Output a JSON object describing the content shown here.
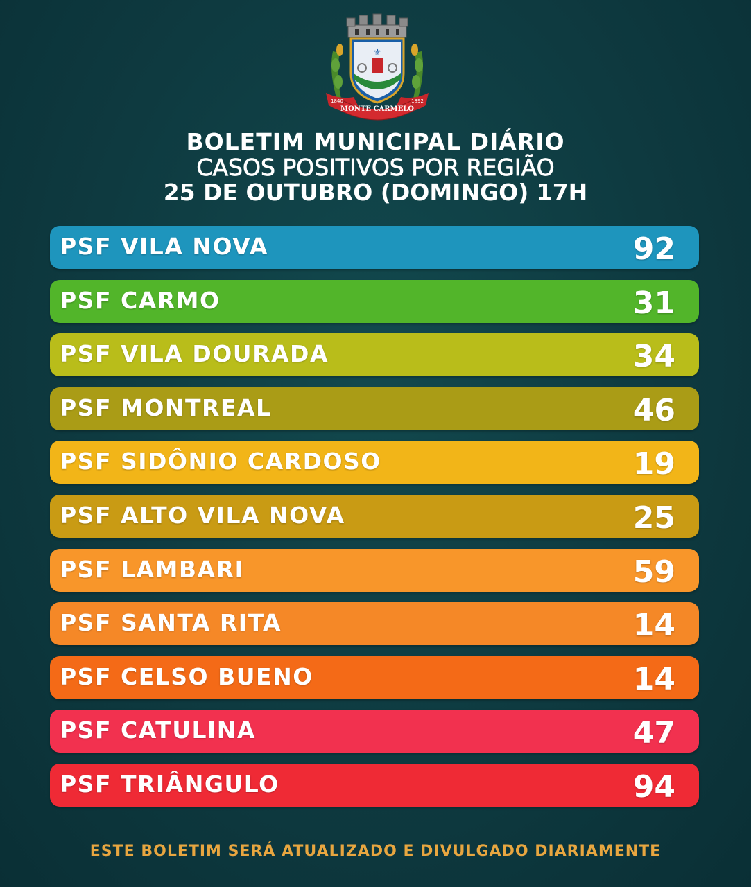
{
  "crest": {
    "banner_text": "MONTE CARMELO",
    "year_left": "1840",
    "year_right": "1892"
  },
  "header": {
    "line1": "BOLETIM MUNICIPAL DIÁRIO",
    "line2": "CASOS POSITIVOS POR REGIÃO",
    "line3": "25 DE OUTUBRO (DOMINGO) 17H"
  },
  "regions": [
    {
      "label": "PSF VILA NOVA",
      "value": "92",
      "color": "#1e95bd"
    },
    {
      "label": "PSF CARMO",
      "value": "31",
      "color": "#52b52a"
    },
    {
      "label": "PSF VILA DOURADA",
      "value": "34",
      "color": "#b9bd1a"
    },
    {
      "label": "PSF MONTREAL",
      "value": "46",
      "color": "#aa9c16"
    },
    {
      "label": "PSF SIDÔNIO CARDOSO",
      "value": "19",
      "color": "#f2b518"
    },
    {
      "label": "PSF ALTO VILA NOVA",
      "value": "25",
      "color": "#c99b14"
    },
    {
      "label": "PSF LAMBARI",
      "value": "59",
      "color": "#f8962a"
    },
    {
      "label": "PSF SANTA RITA",
      "value": "14",
      "color": "#f58827"
    },
    {
      "label": "PSF CELSO BUENO",
      "value": "14",
      "color": "#f46a17"
    },
    {
      "label": "PSF CATULINA",
      "value": "47",
      "color": "#f2314f"
    },
    {
      "label": "PSF TRIÂNGULO",
      "value": "94",
      "color": "#ef2a35"
    }
  ],
  "footer": "ESTE BOLETIM SERÁ ATUALIZADO E DIVULGADO DIARIAMENTE"
}
